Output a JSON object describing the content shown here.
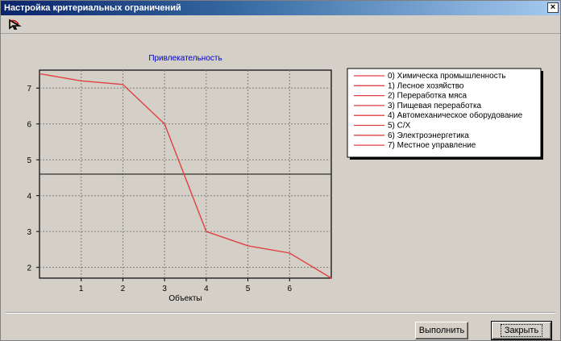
{
  "window": {
    "title": "Настройка критериальных ограничений",
    "close_glyph": "×"
  },
  "toolbar": {
    "icon": "arrow-icon"
  },
  "buttons": {
    "run_label": "Выполнить",
    "close_label": "Закрыть"
  },
  "chart_data": {
    "type": "line",
    "title": "Привлекательность",
    "xlabel": "Объекты",
    "ylabel": "",
    "xlim": [
      0,
      7
    ],
    "ylim": [
      1.7,
      7.5
    ],
    "xticks": [
      1,
      2,
      3,
      4,
      5,
      6
    ],
    "yticks": [
      2,
      3,
      4,
      5,
      6,
      7
    ],
    "grid": true,
    "legend_position": "top-right",
    "threshold": 4.6,
    "series": [
      {
        "name": "",
        "color": "#e04040",
        "points": [
          [
            0,
            7.4
          ],
          [
            1,
            7.2
          ],
          [
            2,
            7.1
          ],
          [
            3,
            6.0
          ],
          [
            4,
            3.0
          ],
          [
            5,
            2.6
          ],
          [
            6,
            2.4
          ],
          [
            7,
            1.7
          ]
        ]
      }
    ],
    "legend_entries": [
      "0) Химическа промышленность",
      "1) Лесное хозяйство",
      "2) Переработка мяса",
      "3) Пищевая переработка",
      "4) Автомеханическое оборудование",
      "5) С/Х",
      "6) Электроэнергетика",
      "7) Местное управление"
    ],
    "legend_color": "#e04040",
    "threshold_color": "#303030"
  }
}
